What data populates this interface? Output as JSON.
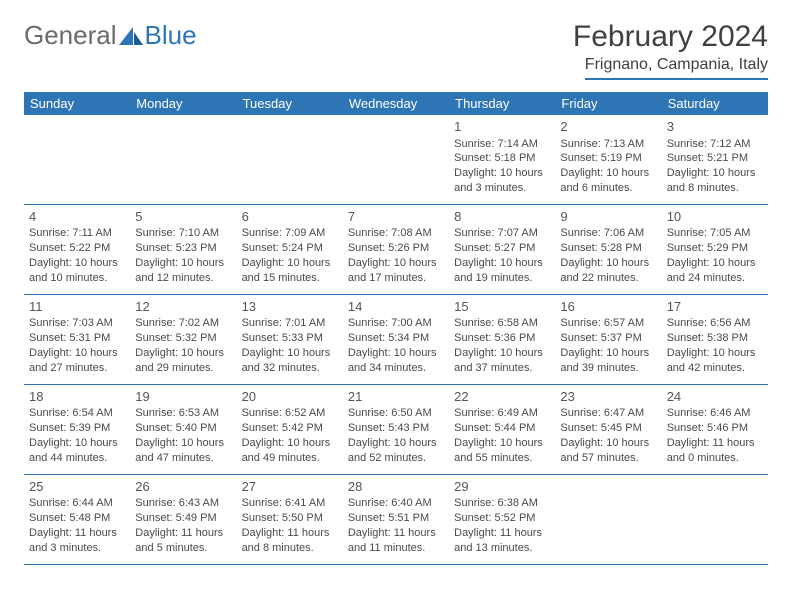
{
  "brand": {
    "part1": "General",
    "part2": "Blue"
  },
  "title": "February 2024",
  "location": "Frignano, Campania, Italy",
  "weekdays": [
    "Sunday",
    "Monday",
    "Tuesday",
    "Wednesday",
    "Thursday",
    "Friday",
    "Saturday"
  ],
  "colors": {
    "header_bg": "#2e75b6",
    "header_fg": "#ffffff",
    "rule": "#2e75b6"
  },
  "weeks": [
    [
      null,
      null,
      null,
      null,
      {
        "n": "1",
        "sr": "7:14 AM",
        "ss": "5:18 PM",
        "dl": "10 hours and 3 minutes."
      },
      {
        "n": "2",
        "sr": "7:13 AM",
        "ss": "5:19 PM",
        "dl": "10 hours and 6 minutes."
      },
      {
        "n": "3",
        "sr": "7:12 AM",
        "ss": "5:21 PM",
        "dl": "10 hours and 8 minutes."
      }
    ],
    [
      {
        "n": "4",
        "sr": "7:11 AM",
        "ss": "5:22 PM",
        "dl": "10 hours and 10 minutes."
      },
      {
        "n": "5",
        "sr": "7:10 AM",
        "ss": "5:23 PM",
        "dl": "10 hours and 12 minutes."
      },
      {
        "n": "6",
        "sr": "7:09 AM",
        "ss": "5:24 PM",
        "dl": "10 hours and 15 minutes."
      },
      {
        "n": "7",
        "sr": "7:08 AM",
        "ss": "5:26 PM",
        "dl": "10 hours and 17 minutes."
      },
      {
        "n": "8",
        "sr": "7:07 AM",
        "ss": "5:27 PM",
        "dl": "10 hours and 19 minutes."
      },
      {
        "n": "9",
        "sr": "7:06 AM",
        "ss": "5:28 PM",
        "dl": "10 hours and 22 minutes."
      },
      {
        "n": "10",
        "sr": "7:05 AM",
        "ss": "5:29 PM",
        "dl": "10 hours and 24 minutes."
      }
    ],
    [
      {
        "n": "11",
        "sr": "7:03 AM",
        "ss": "5:31 PM",
        "dl": "10 hours and 27 minutes."
      },
      {
        "n": "12",
        "sr": "7:02 AM",
        "ss": "5:32 PM",
        "dl": "10 hours and 29 minutes."
      },
      {
        "n": "13",
        "sr": "7:01 AM",
        "ss": "5:33 PM",
        "dl": "10 hours and 32 minutes."
      },
      {
        "n": "14",
        "sr": "7:00 AM",
        "ss": "5:34 PM",
        "dl": "10 hours and 34 minutes."
      },
      {
        "n": "15",
        "sr": "6:58 AM",
        "ss": "5:36 PM",
        "dl": "10 hours and 37 minutes."
      },
      {
        "n": "16",
        "sr": "6:57 AM",
        "ss": "5:37 PM",
        "dl": "10 hours and 39 minutes."
      },
      {
        "n": "17",
        "sr": "6:56 AM",
        "ss": "5:38 PM",
        "dl": "10 hours and 42 minutes."
      }
    ],
    [
      {
        "n": "18",
        "sr": "6:54 AM",
        "ss": "5:39 PM",
        "dl": "10 hours and 44 minutes."
      },
      {
        "n": "19",
        "sr": "6:53 AM",
        "ss": "5:40 PM",
        "dl": "10 hours and 47 minutes."
      },
      {
        "n": "20",
        "sr": "6:52 AM",
        "ss": "5:42 PM",
        "dl": "10 hours and 49 minutes."
      },
      {
        "n": "21",
        "sr": "6:50 AM",
        "ss": "5:43 PM",
        "dl": "10 hours and 52 minutes."
      },
      {
        "n": "22",
        "sr": "6:49 AM",
        "ss": "5:44 PM",
        "dl": "10 hours and 55 minutes."
      },
      {
        "n": "23",
        "sr": "6:47 AM",
        "ss": "5:45 PM",
        "dl": "10 hours and 57 minutes."
      },
      {
        "n": "24",
        "sr": "6:46 AM",
        "ss": "5:46 PM",
        "dl": "11 hours and 0 minutes."
      }
    ],
    [
      {
        "n": "25",
        "sr": "6:44 AM",
        "ss": "5:48 PM",
        "dl": "11 hours and 3 minutes."
      },
      {
        "n": "26",
        "sr": "6:43 AM",
        "ss": "5:49 PM",
        "dl": "11 hours and 5 minutes."
      },
      {
        "n": "27",
        "sr": "6:41 AM",
        "ss": "5:50 PM",
        "dl": "11 hours and 8 minutes."
      },
      {
        "n": "28",
        "sr": "6:40 AM",
        "ss": "5:51 PM",
        "dl": "11 hours and 11 minutes."
      },
      {
        "n": "29",
        "sr": "6:38 AM",
        "ss": "5:52 PM",
        "dl": "11 hours and 13 minutes."
      },
      null,
      null
    ]
  ],
  "labels": {
    "sunrise": "Sunrise:",
    "sunset": "Sunset:",
    "daylight": "Daylight:"
  }
}
